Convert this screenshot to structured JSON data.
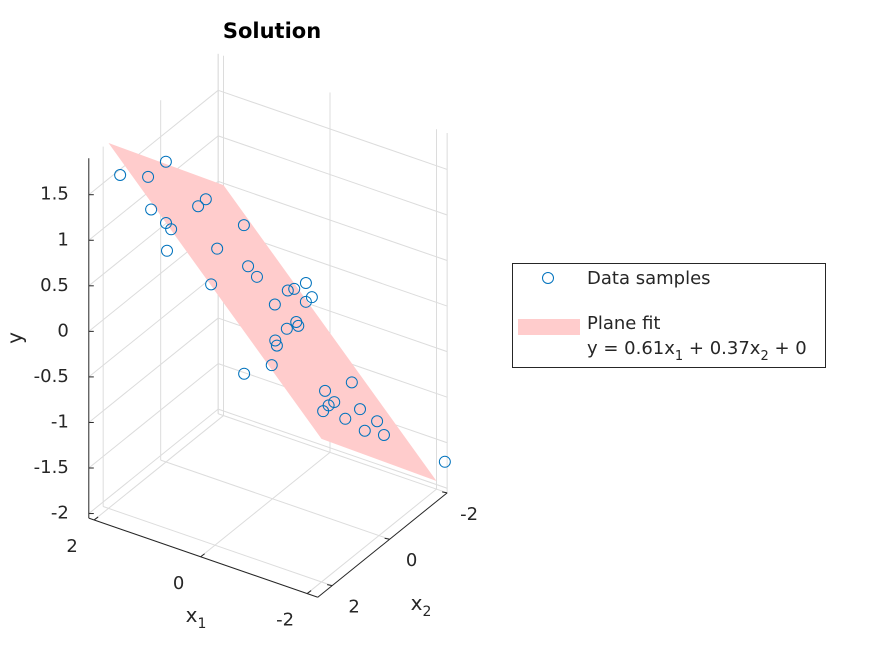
{
  "chart_data": {
    "type": "scatter3d",
    "title": "Solution",
    "x1label": {
      "text": "x",
      "subscript": "1"
    },
    "x2label": {
      "text": "x",
      "subscript": "2"
    },
    "ylabel": "y",
    "x1lim": [
      -2.2,
      2.1
    ],
    "x1ticks": [
      -2,
      0,
      2
    ],
    "x2lim": [
      -2,
      2.5
    ],
    "x2ticks": [
      -2,
      0,
      2
    ],
    "ylim": [
      -2.05,
      1.9
    ],
    "yticks": [
      -2,
      -1.5,
      -1,
      -0.5,
      0,
      0.5,
      1,
      1.5
    ],
    "grid": true,
    "legend": "right",
    "series": [
      {
        "name": "Plane fit",
        "type": "surface",
        "color": "#ffcccc",
        "label": [
          "y = 0.61x",
          "1",
          " + 0.37x",
          "2",
          " + 0"
        ],
        "x1": [
          -2,
          2,
          2,
          -2
        ],
        "x2": [
          -2,
          -2,
          2,
          2
        ],
        "values": [
          -1.96,
          0.48,
          1.96,
          -0.48
        ]
      },
      {
        "name": "Data samples",
        "type": "scatter",
        "color": "#0072bd",
        "x1": [
          1.49,
          2.04,
          1.64,
          1.07,
          0.92,
          0.84,
          0.41,
          1.44,
          1.63,
          1.39,
          0.78,
          0.68,
          0.54,
          0.1,
          0.49,
          0.58,
          0.76,
          0.54,
          0.41,
          0.15,
          -0.03,
          -0.09,
          -0.21,
          -0.5,
          -0.59,
          -0.99,
          -1.33,
          -0.75,
          -1.1,
          -1.24,
          -1.34,
          -1.48,
          -1.19,
          -1.48,
          -1.3,
          -1.56,
          -1.51,
          -1.59
        ],
        "x2": [
          2.54,
          -0.07,
          1.29,
          2.24,
          2.0,
          1.97,
          2.91,
          -0.08,
          -0.7,
          -1.58,
          0.48,
          -0.41,
          -0.46,
          1.95,
          -1.44,
          -1.83,
          -2.57,
          -2.37,
          -1.92,
          -0.36,
          -0.77,
          -0.73,
          -0.11,
          0.83,
          0.94,
          1.86,
          3.45,
          -1.37,
          0.21,
          0.15,
          0.53,
          0.98,
          -0.84,
          0.21,
          -1.23,
          -0.32,
          -1.08,
          -3.05
        ],
        "values": [
          1.85,
          1.22,
          1.48,
          1.48,
          1.3,
          1.24,
          1.33,
          0.85,
          0.73,
          0.27,
          0.66,
          0.26,
          0.16,
          0.78,
          -0.23,
          -0.33,
          -0.49,
          -0.55,
          -0.46,
          -0.04,
          -0.3,
          -0.32,
          -0.17,
          0.0,
          -0.01,
          0.09,
          0.47,
          -0.97,
          -0.59,
          -0.7,
          -0.62,
          -0.54,
          -1.04,
          -0.82,
          -1.25,
          -1.07,
          -1.32,
          -2.1
        ]
      }
    ]
  }
}
